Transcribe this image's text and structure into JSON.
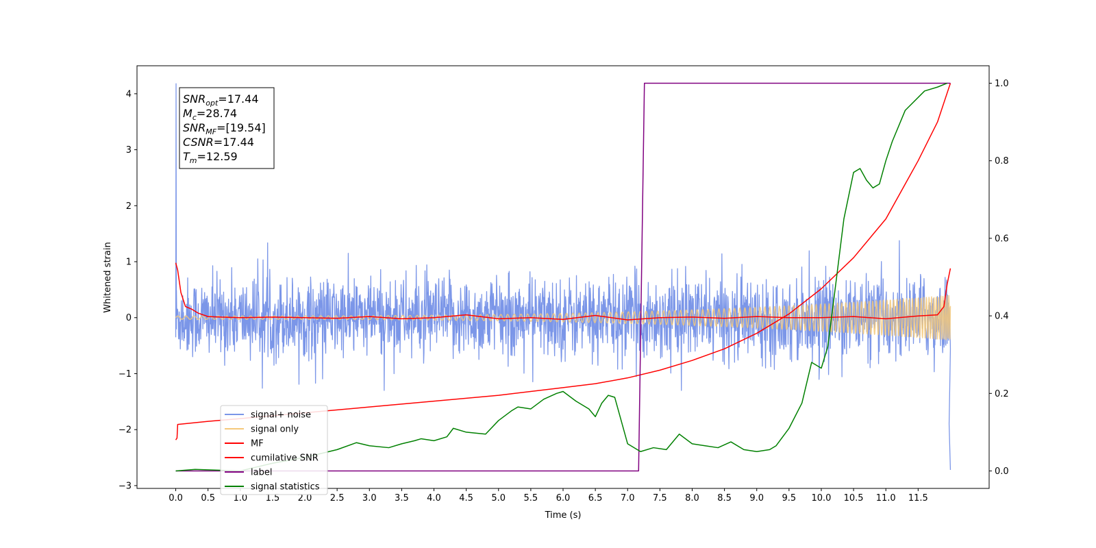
{
  "chart_data": {
    "type": "line",
    "xlabel": "Time (s)",
    "ylabel": "Whitened strain",
    "ylabel_right": "",
    "xlim": [
      -0.6,
      12.6
    ],
    "ylim": [
      -3.05,
      4.5
    ],
    "ylim_right": [
      -0.045,
      1.045
    ],
    "x_ticks": [
      "0.0",
      "0.5",
      "1.0",
      "1.5",
      "2.0",
      "2.5",
      "3.0",
      "3.5",
      "4.0",
      "4.5",
      "5.0",
      "5.5",
      "6.0",
      "6.5",
      "7.0",
      "7.5",
      "8.0",
      "8.5",
      "9.0",
      "9.5",
      "10.0",
      "10.5",
      "11.0",
      "11.5"
    ],
    "y_ticks": [
      "−3",
      "−2",
      "−1",
      "0",
      "1",
      "2",
      "3",
      "4"
    ],
    "y_ticks_right": [
      "0.0",
      "0.2",
      "0.4",
      "0.6",
      "0.8",
      "1.0"
    ],
    "grid": false,
    "legend_position": "lower-left",
    "info_box": [
      {
        "base": "SNR",
        "sub": "opt",
        "value": "=17.44"
      },
      {
        "base": "M",
        "sub": "c",
        "value": "=28.74"
      },
      {
        "base": "SNR",
        "sub": "MF",
        "value": "=[19.54]"
      },
      {
        "base": "CSNR",
        "sub": "",
        "value": "=17.44"
      },
      {
        "base": "T",
        "sub": "m",
        "value": "=12.59"
      }
    ],
    "series": [
      {
        "name": "signal+ noise",
        "color": "#7b96e8",
        "axis": "left",
        "kind": "noise",
        "x_range": [
          0.0,
          12.0
        ],
        "band": [
          -1.3,
          1.45
        ],
        "typical_amplitude": 0.45,
        "start_spike": 4.18,
        "end_spike": -2.72
      },
      {
        "name": "signal only",
        "color": "#f5c97a",
        "axis": "left",
        "kind": "chirp",
        "x_range": [
          0.0,
          12.0
        ],
        "amplitude_start": 0.03,
        "amplitude_end": 0.4
      },
      {
        "name": "MF",
        "color": "#ff0000",
        "axis": "left",
        "x": [
          0.0,
          0.03,
          0.08,
          0.15,
          0.25,
          0.35,
          0.5,
          0.7,
          1.0,
          1.5,
          2.0,
          2.5,
          3.0,
          3.5,
          4.0,
          4.5,
          5.0,
          5.5,
          6.0,
          6.5,
          7.0,
          7.5,
          8.0,
          8.5,
          9.0,
          9.5,
          10.0,
          10.5,
          11.0,
          11.5,
          11.8,
          11.9,
          11.95,
          12.0
        ],
        "y": [
          0.98,
          0.85,
          0.45,
          0.2,
          0.15,
          0.08,
          0.02,
          0.01,
          0.0,
          0.01,
          0.0,
          -0.01,
          0.02,
          -0.02,
          0.0,
          0.05,
          -0.02,
          0.0,
          -0.03,
          0.04,
          -0.04,
          0.0,
          0.01,
          -0.01,
          0.02,
          0.0,
          0.0,
          0.02,
          -0.02,
          0.03,
          0.05,
          0.2,
          0.6,
          0.88
        ]
      },
      {
        "name": "cumilative SNR",
        "color": "#ff0000",
        "axis": "right",
        "x": [
          0.0,
          0.02,
          0.03,
          0.5,
          1.0,
          2.0,
          3.0,
          4.0,
          5.0,
          6.0,
          6.5,
          7.0,
          7.5,
          8.0,
          8.5,
          9.0,
          9.5,
          10.0,
          10.5,
          11.0,
          11.5,
          11.8,
          12.0
        ],
        "y": [
          0.08,
          0.085,
          0.12,
          0.128,
          0.135,
          0.15,
          0.165,
          0.18,
          0.195,
          0.215,
          0.225,
          0.24,
          0.26,
          0.285,
          0.315,
          0.355,
          0.405,
          0.47,
          0.55,
          0.65,
          0.8,
          0.9,
          1.0
        ]
      },
      {
        "name": "label",
        "color": "#800080",
        "axis": "right",
        "x": [
          0.0,
          7.17,
          7.26,
          12.0
        ],
        "y": [
          0.0,
          0.0,
          1.0,
          1.0
        ]
      },
      {
        "name": "signal statistics",
        "color": "#008000",
        "axis": "right",
        "x": [
          0.0,
          0.3,
          1.0,
          1.5,
          2.0,
          2.5,
          2.8,
          3.0,
          3.3,
          3.5,
          3.7,
          3.8,
          4.0,
          4.2,
          4.3,
          4.5,
          4.8,
          5.0,
          5.2,
          5.3,
          5.5,
          5.7,
          5.9,
          6.0,
          6.2,
          6.4,
          6.5,
          6.6,
          6.7,
          6.8,
          7.0,
          7.2,
          7.4,
          7.6,
          7.8,
          8.0,
          8.2,
          8.4,
          8.6,
          8.8,
          9.0,
          9.2,
          9.3,
          9.5,
          9.7,
          9.85,
          10.0,
          10.1,
          10.2,
          10.35,
          10.5,
          10.6,
          10.7,
          10.8,
          10.9,
          11.0,
          11.1,
          11.3,
          11.6,
          11.8,
          11.95
        ],
        "y": [
          0.0,
          0.004,
          0.0,
          0.02,
          0.035,
          0.055,
          0.073,
          0.065,
          0.06,
          0.07,
          0.078,
          0.083,
          0.078,
          0.088,
          0.11,
          0.1,
          0.095,
          0.13,
          0.155,
          0.165,
          0.16,
          0.185,
          0.2,
          0.205,
          0.18,
          0.16,
          0.14,
          0.175,
          0.195,
          0.19,
          0.07,
          0.05,
          0.06,
          0.055,
          0.095,
          0.07,
          0.065,
          0.06,
          0.075,
          0.055,
          0.05,
          0.055,
          0.065,
          0.11,
          0.175,
          0.28,
          0.265,
          0.32,
          0.45,
          0.65,
          0.77,
          0.78,
          0.75,
          0.73,
          0.74,
          0.8,
          0.85,
          0.93,
          0.98,
          0.99,
          1.0
        ]
      }
    ]
  }
}
